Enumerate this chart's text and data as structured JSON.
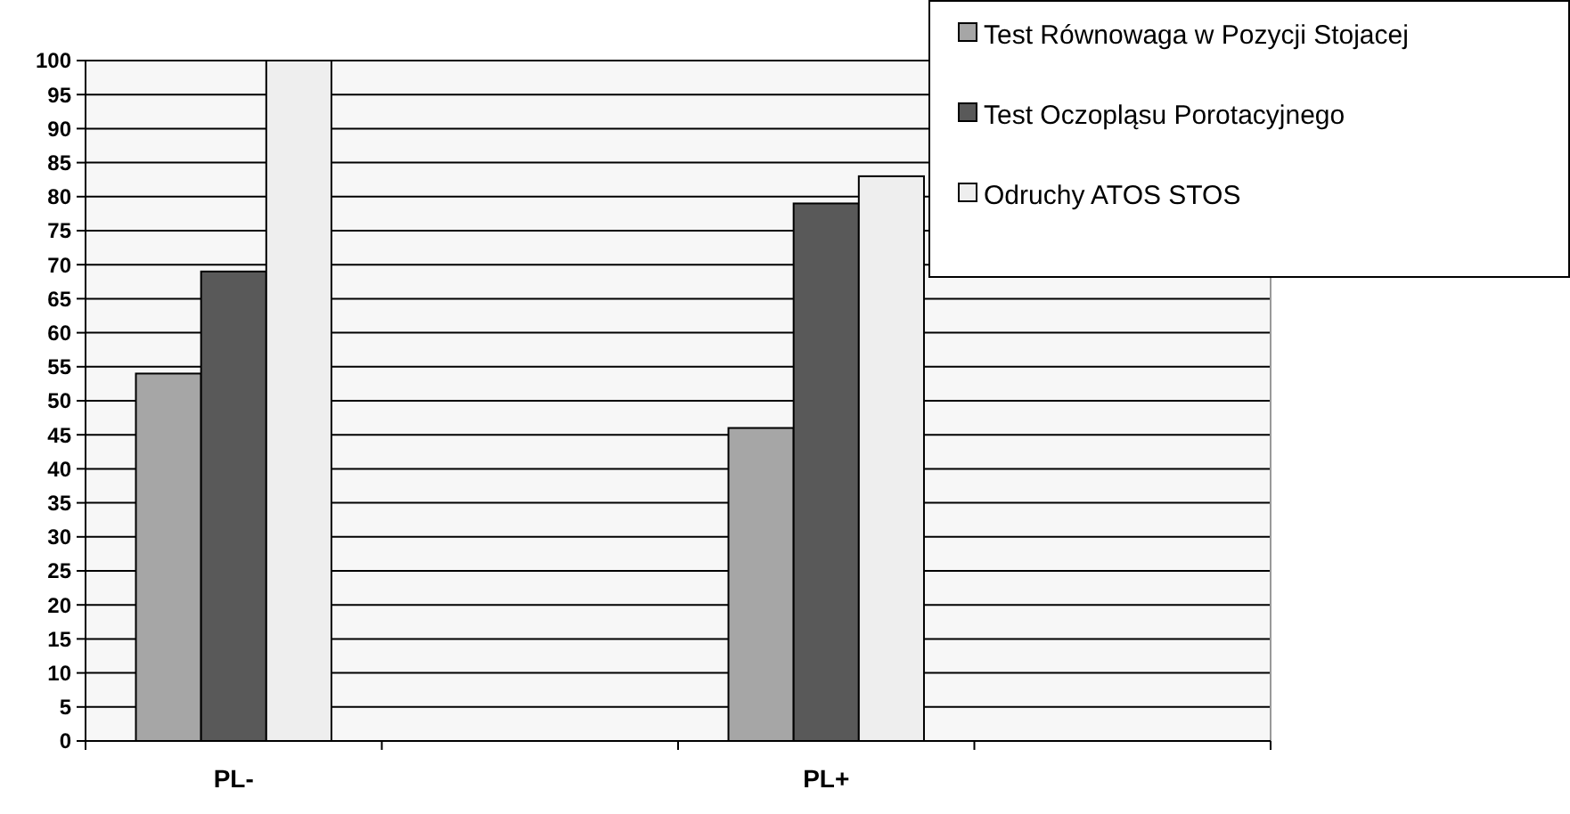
{
  "chart_data": {
    "type": "bar",
    "categories": [
      "PL-",
      null,
      "PL+",
      null
    ],
    "series": [
      {
        "name": "Test Równowaga w Pozycji Stojacej",
        "color": "#a6a6a6",
        "values": [
          54,
          null,
          46,
          null
        ]
      },
      {
        "name": "Test Oczopląsu Porotacyjnego",
        "color": "#595959",
        "values": [
          69,
          null,
          79,
          null
        ]
      },
      {
        "name": "Odruchy ATOS STOS",
        "color": "#eeeeee",
        "values": [
          100,
          null,
          83,
          null
        ]
      }
    ],
    "ylim": [
      0,
      100
    ],
    "yticks": [
      0,
      5,
      10,
      15,
      20,
      25,
      30,
      35,
      40,
      45,
      50,
      55,
      60,
      65,
      70,
      75,
      80,
      85,
      90,
      95,
      100
    ],
    "grid": "y",
    "legend": "top right"
  }
}
